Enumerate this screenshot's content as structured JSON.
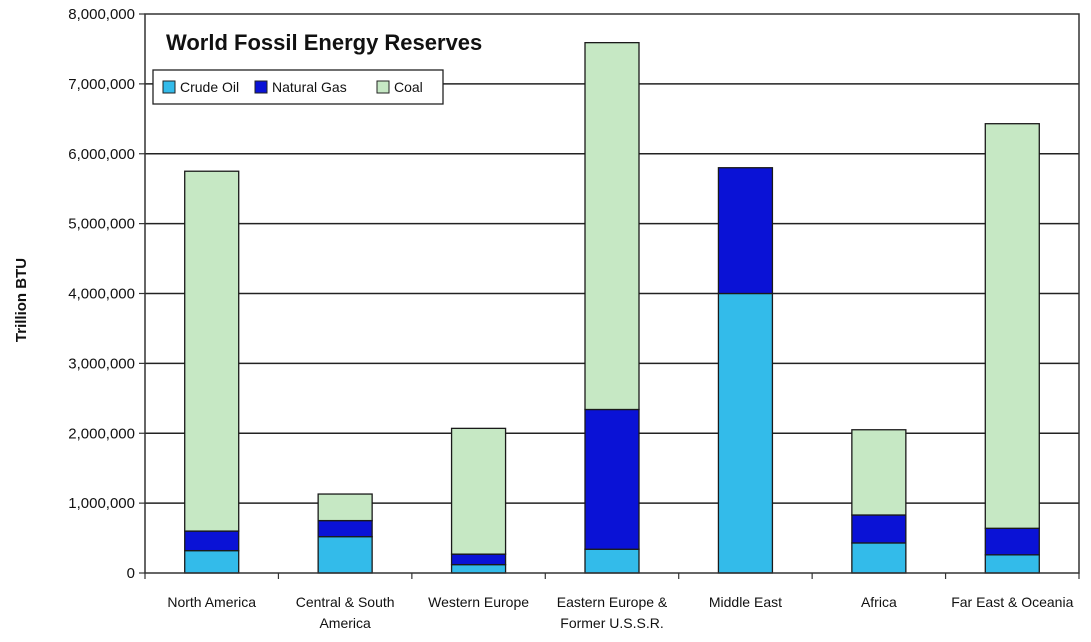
{
  "chart_data": {
    "type": "bar",
    "stacked": true,
    "title": "World Fossil Energy Reserves",
    "xlabel": "",
    "ylabel": "Trillion BTU",
    "ylim": [
      0,
      8000000
    ],
    "yticks": [
      0,
      1000000,
      2000000,
      3000000,
      4000000,
      5000000,
      6000000,
      7000000,
      8000000
    ],
    "ytick_labels": [
      "0",
      "1,000,000",
      "2,000,000",
      "3,000,000",
      "4,000,000",
      "5,000,000",
      "6,000,000",
      "7,000,000",
      "8,000,000"
    ],
    "categories": [
      [
        "North America"
      ],
      [
        "Central & South",
        "America"
      ],
      [
        "Western Europe"
      ],
      [
        "Eastern Europe &",
        "Former U.S.S.R."
      ],
      [
        "Middle East"
      ],
      [
        "Africa"
      ],
      [
        "Far East & Oceania"
      ]
    ],
    "series": [
      {
        "name": "Crude Oil",
        "color": "#33BBEA",
        "values": [
          320000,
          520000,
          120000,
          340000,
          4000000,
          430000,
          260000
        ]
      },
      {
        "name": "Natural Gas",
        "color": "#0A12D6",
        "values": [
          280000,
          230000,
          150000,
          2000000,
          1800000,
          400000,
          380000
        ]
      },
      {
        "name": "Coal",
        "color": "#C6E8C4",
        "values": [
          5150000,
          380000,
          1800000,
          5250000,
          0,
          1220000,
          5790000
        ]
      }
    ],
    "grid": true,
    "legend_position": "top-left"
  }
}
